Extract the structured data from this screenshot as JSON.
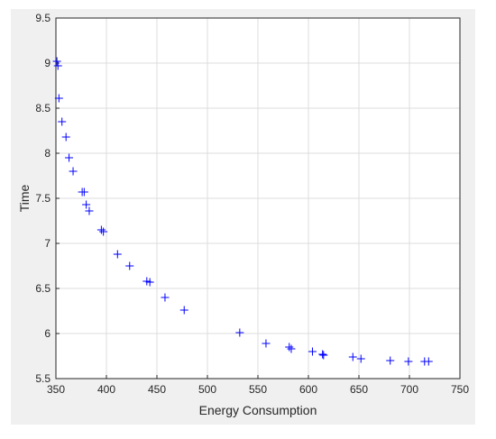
{
  "chart_data": {
    "type": "scatter",
    "title": "",
    "xlabel": "Energy Consumption",
    "ylabel": "Time",
    "xlim": [
      350,
      750
    ],
    "ylim": [
      5.5,
      9.5
    ],
    "xticks": [
      350,
      400,
      450,
      500,
      550,
      600,
      650,
      700,
      750
    ],
    "yticks": [
      5.5,
      6,
      6.5,
      7,
      7.5,
      8,
      8.5,
      9,
      9.5
    ],
    "xtick_labels": [
      "350",
      "400",
      "450",
      "500",
      "550",
      "600",
      "650",
      "700",
      "750"
    ],
    "ytick_labels": [
      "5.5",
      "6",
      "6.5",
      "7",
      "7.5",
      "8",
      "8.5",
      "9",
      "9.5"
    ],
    "grid": true,
    "marker": "+",
    "marker_color": "#0000ff",
    "series": [
      {
        "points": [
          [
            351,
            9.02
          ],
          [
            352,
            8.97
          ],
          [
            353,
            8.61
          ],
          [
            356,
            8.35
          ],
          [
            360,
            8.18
          ],
          [
            363,
            7.95
          ],
          [
            367,
            7.8
          ],
          [
            376,
            7.57
          ],
          [
            378,
            7.57
          ],
          [
            380,
            7.43
          ],
          [
            383,
            7.36
          ],
          [
            395,
            7.15
          ],
          [
            397,
            7.13
          ],
          [
            411,
            6.88
          ],
          [
            423,
            6.75
          ],
          [
            440,
            6.58
          ],
          [
            443,
            6.57
          ],
          [
            458,
            6.4
          ],
          [
            477,
            6.26
          ],
          [
            532,
            6.01
          ],
          [
            558,
            5.89
          ],
          [
            581,
            5.85
          ],
          [
            583,
            5.83
          ],
          [
            604,
            5.8
          ],
          [
            614,
            5.77
          ],
          [
            615,
            5.76
          ],
          [
            644,
            5.74
          ],
          [
            652,
            5.72
          ],
          [
            681,
            5.7
          ],
          [
            699,
            5.69
          ],
          [
            715,
            5.69
          ],
          [
            719,
            5.69
          ]
        ]
      }
    ]
  }
}
